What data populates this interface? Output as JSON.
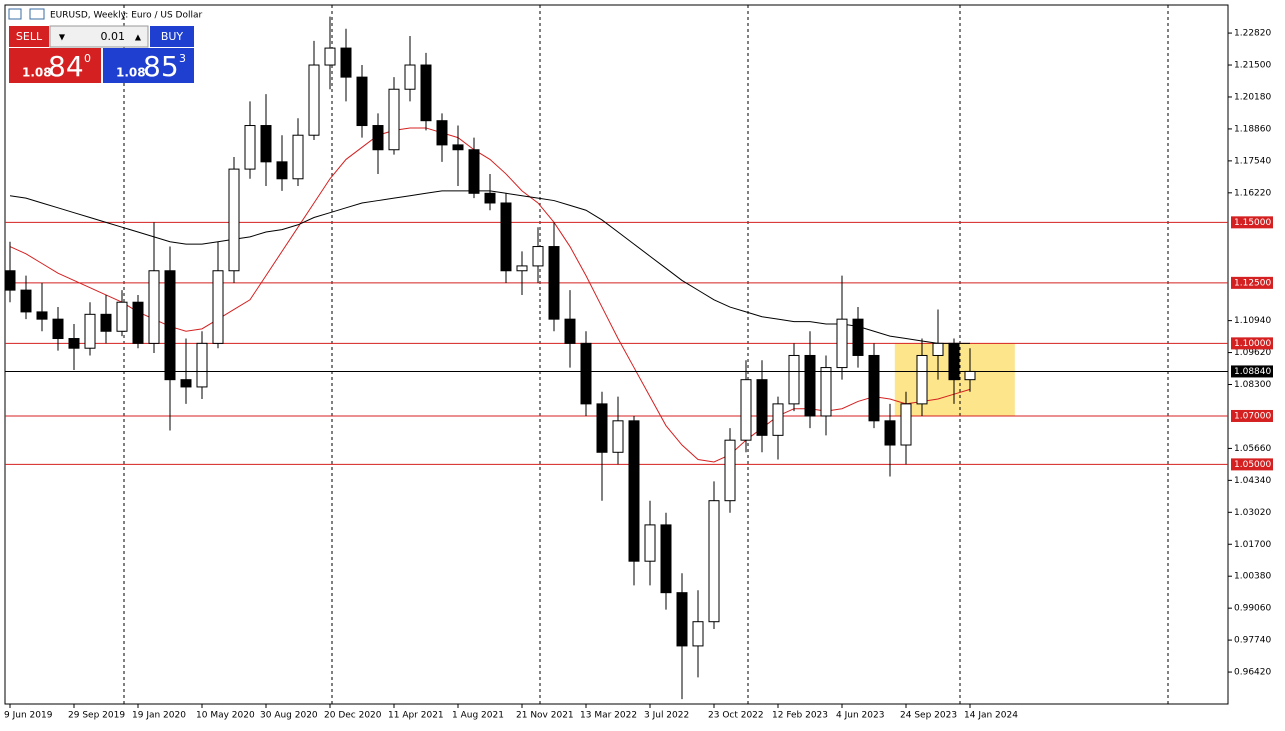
{
  "header": {
    "title": "EURUSD, Weekly:  Euro / US Dollar"
  },
  "trade_panel": {
    "sell": "SELL",
    "buy": "BUY",
    "volume": "0.01",
    "bid": {
      "big": "1.08",
      "pips": "84",
      "point": "0"
    },
    "ask": {
      "big": "1.08",
      "pips": "85",
      "point": "3"
    }
  },
  "chart_data": {
    "type": "candlestick",
    "categories": [
      "9 Jun 2019",
      null,
      null,
      null,
      "29 Sep 2019",
      null,
      null,
      null,
      "19 Jan 2020",
      null,
      null,
      null,
      "10 May 2020",
      null,
      null,
      null,
      "30 Aug 2020",
      null,
      null,
      null,
      "20 Dec 2020",
      null,
      null,
      null,
      "11 Apr 2021",
      null,
      null,
      null,
      "1 Aug 2021",
      null,
      null,
      null,
      "21 Nov 2021",
      null,
      null,
      null,
      "13 Mar 2022",
      null,
      null,
      null,
      "3 Jul 2022",
      null,
      null,
      null,
      "23 Oct 2022",
      null,
      null,
      null,
      "12 Feb 2023",
      null,
      null,
      null,
      "4 Jun 2023",
      null,
      null,
      null,
      "24 Sep 2023",
      null,
      null,
      null,
      "14 Jan 2024"
    ],
    "open": [
      1.13,
      1.122,
      1.113,
      1.11,
      1.102,
      1.098,
      1.112,
      1.105,
      1.117,
      1.1,
      1.13,
      1.085,
      1.082,
      1.1,
      1.13,
      1.172,
      1.19,
      1.175,
      1.168,
      1.186,
      1.215,
      1.222,
      1.21,
      1.19,
      1.18,
      1.205,
      1.215,
      1.192,
      1.182,
      1.18,
      1.162,
      1.158,
      1.13,
      1.132,
      1.14,
      1.11,
      1.1,
      1.075,
      1.055,
      1.068,
      1.01,
      1.025,
      0.997,
      0.975,
      0.985,
      1.035,
      1.06,
      1.085,
      1.062,
      1.075,
      1.095,
      1.07,
      1.09,
      1.11,
      1.095,
      1.068,
      1.058,
      1.075,
      1.095,
      1.1,
      1.085
    ],
    "high": [
      1.142,
      1.128,
      1.125,
      1.115,
      1.108,
      1.117,
      1.12,
      1.122,
      1.12,
      1.15,
      1.14,
      1.102,
      1.105,
      1.142,
      1.177,
      1.2,
      1.203,
      1.186,
      1.193,
      1.225,
      1.235,
      1.23,
      1.215,
      1.195,
      1.21,
      1.227,
      1.22,
      1.195,
      1.19,
      1.185,
      1.17,
      1.162,
      1.138,
      1.148,
      1.15,
      1.122,
      1.105,
      1.08,
      1.078,
      1.07,
      1.035,
      1.03,
      1.005,
      0.998,
      1.043,
      1.065,
      1.093,
      1.093,
      1.078,
      1.1,
      1.105,
      1.095,
      1.128,
      1.115,
      1.1,
      1.075,
      1.08,
      1.102,
      1.114,
      1.102,
      1.098
    ],
    "low": [
      1.117,
      1.11,
      1.105,
      1.097,
      1.089,
      1.095,
      1.1,
      1.103,
      1.098,
      1.096,
      1.064,
      1.075,
      1.077,
      1.098,
      1.125,
      1.168,
      1.165,
      1.163,
      1.165,
      1.184,
      1.205,
      1.2,
      1.185,
      1.17,
      1.178,
      1.2,
      1.188,
      1.175,
      1.165,
      1.16,
      1.155,
      1.125,
      1.12,
      1.125,
      1.105,
      1.09,
      1.07,
      1.035,
      1.05,
      1.0,
      1.0,
      0.99,
      0.953,
      0.962,
      0.982,
      1.03,
      1.055,
      1.055,
      1.052,
      1.072,
      1.065,
      1.062,
      1.085,
      1.09,
      1.065,
      1.045,
      1.05,
      1.07,
      1.085,
      1.075,
      1.08
    ],
    "close": [
      1.122,
      1.113,
      1.11,
      1.102,
      1.098,
      1.112,
      1.105,
      1.117,
      1.1,
      1.13,
      1.085,
      1.082,
      1.1,
      1.13,
      1.172,
      1.19,
      1.175,
      1.168,
      1.186,
      1.215,
      1.222,
      1.21,
      1.19,
      1.18,
      1.205,
      1.215,
      1.192,
      1.182,
      1.18,
      1.162,
      1.158,
      1.13,
      1.132,
      1.14,
      1.11,
      1.1,
      1.075,
      1.055,
      1.068,
      1.01,
      1.025,
      0.997,
      0.975,
      0.985,
      1.035,
      1.06,
      1.085,
      1.062,
      1.075,
      1.095,
      1.07,
      1.09,
      1.11,
      1.095,
      1.068,
      1.058,
      1.075,
      1.095,
      1.1,
      1.085,
      1.0884
    ],
    "ma_lines": [
      {
        "color": "#d42020",
        "values": [
          1.14,
          1.137,
          1.133,
          1.129,
          1.126,
          1.123,
          1.12,
          1.117,
          1.113,
          1.11,
          1.107,
          1.105,
          1.106,
          1.11,
          1.114,
          1.118,
          1.128,
          1.138,
          1.148,
          1.158,
          1.168,
          1.176,
          1.181,
          1.186,
          1.188,
          1.189,
          1.189,
          1.187,
          1.185,
          1.18,
          1.176,
          1.17,
          1.163,
          1.158,
          1.15,
          1.14,
          1.128,
          1.115,
          1.102,
          1.09,
          1.078,
          1.066,
          1.058,
          1.052,
          1.051,
          1.054,
          1.06,
          1.065,
          1.07,
          1.073,
          1.073,
          1.072,
          1.073,
          1.076,
          1.078,
          1.077,
          1.075,
          1.076,
          1.077,
          1.079,
          1.081
        ]
      },
      {
        "color": "#000000",
        "values": [
          1.161,
          1.16,
          1.158,
          1.156,
          1.154,
          1.152,
          1.15,
          1.148,
          1.146,
          1.144,
          1.142,
          1.141,
          1.141,
          1.142,
          1.143,
          1.144,
          1.146,
          1.147,
          1.149,
          1.152,
          1.154,
          1.156,
          1.158,
          1.159,
          1.16,
          1.161,
          1.162,
          1.163,
          1.163,
          1.163,
          1.163,
          1.162,
          1.161,
          1.16,
          1.159,
          1.157,
          1.155,
          1.151,
          1.146,
          1.141,
          1.136,
          1.131,
          1.126,
          1.122,
          1.118,
          1.115,
          1.113,
          1.111,
          1.11,
          1.109,
          1.109,
          1.108,
          1.108,
          1.107,
          1.105,
          1.103,
          1.102,
          1.101,
          1.1,
          1.1,
          1.1
        ]
      }
    ],
    "levels": [
      {
        "value": 1.15,
        "label": "1.15000"
      },
      {
        "value": 1.125,
        "label": "1.12500"
      },
      {
        "value": 1.1,
        "label": "1.10000"
      },
      {
        "value": 1.07,
        "label": "1.07000"
      },
      {
        "value": 1.05,
        "label": "1.05000"
      }
    ],
    "level_color": "#d42020",
    "current_price": {
      "value": 1.0884,
      "label": "1.08840"
    },
    "zone": {
      "ylim": [
        1.07,
        1.1
      ],
      "color": "#fce58a"
    },
    "ylim": [
      0.951,
      1.2398
    ],
    "yticks": [
      {
        "value": 1.2282,
        "label": "1.22820"
      },
      {
        "value": 1.215,
        "label": "1.21500"
      },
      {
        "value": 1.2018,
        "label": "1.20180"
      },
      {
        "value": 1.1886,
        "label": "1.18860"
      },
      {
        "value": 1.1754,
        "label": "1.17540"
      },
      {
        "value": 1.1622,
        "label": "1.16220"
      },
      {
        "value": 1.1094,
        "label": "1.10940"
      },
      {
        "value": 1.0962,
        "label": "1.09620"
      },
      {
        "value": 1.083,
        "label": "1.08300"
      },
      {
        "value": 1.0566,
        "label": "1.05660"
      },
      {
        "value": 1.0434,
        "label": "1.04340"
      },
      {
        "value": 1.0302,
        "label": "1.03020"
      },
      {
        "value": 1.017,
        "label": "1.01700"
      },
      {
        "value": 1.0038,
        "label": "1.00380"
      },
      {
        "value": 0.9906,
        "label": "0.99060"
      },
      {
        "value": 0.9774,
        "label": "0.97740"
      },
      {
        "value": 0.9642,
        "label": "0.96420"
      }
    ]
  }
}
